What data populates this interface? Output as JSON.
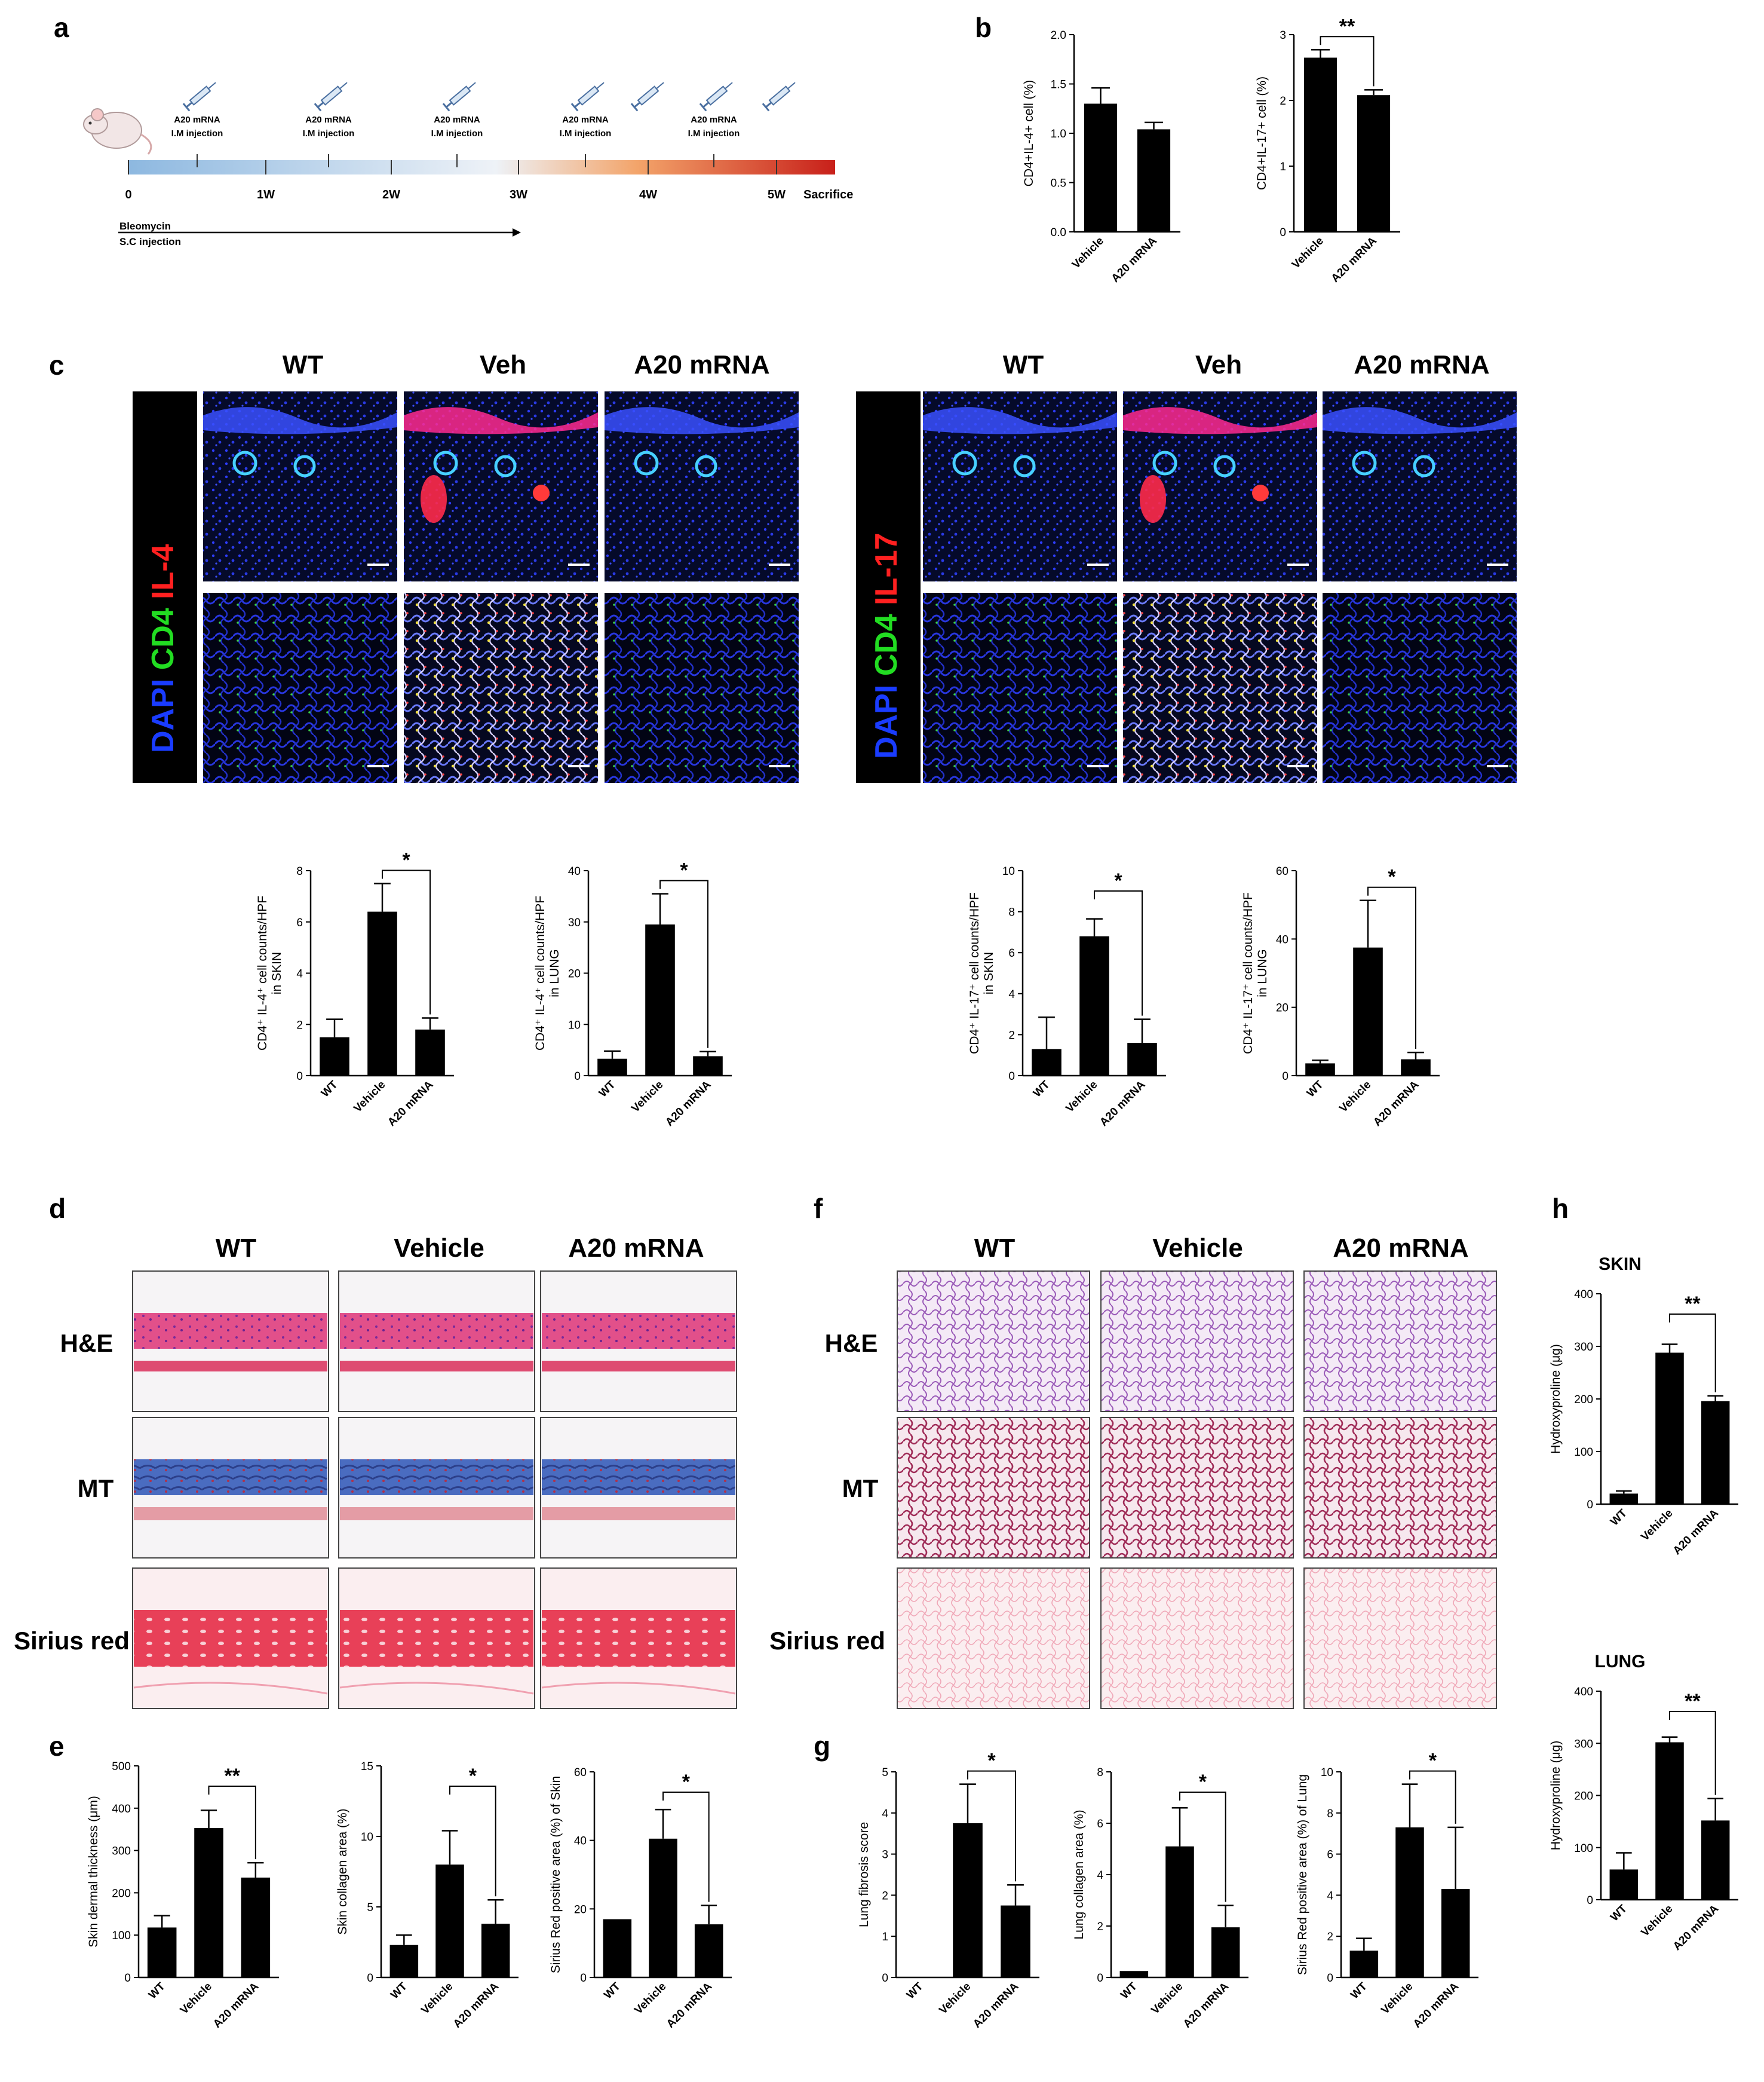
{
  "panels": {
    "a": "a",
    "b": "b",
    "c": "c",
    "d": "d",
    "e": "e",
    "f": "f",
    "g": "g",
    "h": "h"
  },
  "timeline": {
    "injection_label_1": "A20 mRNA",
    "injection_label_2": "I.M injection",
    "ticks": [
      "0",
      "1W",
      "2W",
      "3W",
      "4W",
      "5W"
    ],
    "end_label": "Sacrifice",
    "bleo_label_1": "Bleomycin",
    "bleo_label_2": "S.C injection",
    "colors": {
      "start": "#8db8e0",
      "mid": "#e8eef6",
      "end": "#c8201a"
    }
  },
  "panel_c": {
    "headers_left": [
      "WT",
      "Veh",
      "A20 mRNA"
    ],
    "headers_right": [
      "WT",
      "Veh",
      "A20 mRNA"
    ],
    "stain_left": {
      "dapi": "DAPI",
      "cd4": "CD4",
      "cyt": "IL-4"
    },
    "stain_right": {
      "dapi": "DAPI",
      "cd4": "CD4",
      "cyt": "IL-17"
    },
    "colors": {
      "dapi": "#1a3cff",
      "cd4": "#22dd22",
      "il": "#ff2020"
    }
  },
  "panel_d": {
    "headers": [
      "WT",
      "Vehicle",
      "A20 mRNA"
    ],
    "rows": [
      "H&E",
      "MT",
      "Sirius red"
    ]
  },
  "panel_f": {
    "headers": [
      "WT",
      "Vehicle",
      "A20 mRNA"
    ],
    "rows": [
      "H&E",
      "MT",
      "Sirius red"
    ]
  },
  "panel_h": {
    "skin_title": "SKIN",
    "lung_title": "LUNG"
  },
  "chart_data": [
    {
      "id": "b1",
      "type": "bar",
      "categories": [
        "Vehicle",
        "A20 mRNA"
      ],
      "values": [
        1.3,
        1.04
      ],
      "errors": [
        0.16,
        0.07
      ],
      "ylabel": "CD4+IL-4+ cell (%)",
      "ylim": [
        0,
        2.0
      ],
      "yticks": [
        "0.0",
        "0.5",
        "1.0",
        "1.5",
        "2.0"
      ],
      "sig": null
    },
    {
      "id": "b2",
      "type": "bar",
      "categories": [
        "Vehicle",
        "A20 mRNA"
      ],
      "values": [
        2.65,
        2.08
      ],
      "errors": [
        0.12,
        0.08
      ],
      "ylabel": "CD4+IL-17+ cell (%)",
      "ylim": [
        0,
        3
      ],
      "yticks": [
        "0",
        "1",
        "2",
        "3"
      ],
      "sig": {
        "from": 0,
        "to": 1,
        "label": "**"
      }
    },
    {
      "id": "c1",
      "type": "bar",
      "categories": [
        "WT",
        "Vehicle",
        "A20 mRNA"
      ],
      "values": [
        1.5,
        6.4,
        1.8
      ],
      "errors": [
        0.7,
        1.1,
        0.45
      ],
      "ylabel_1": "CD4⁺ IL-4⁺ cell counts/HPF",
      "ylabel_2": "in SKIN",
      "ylim": [
        0,
        8
      ],
      "yticks": [
        "0",
        "2",
        "4",
        "6",
        "8"
      ],
      "sig": {
        "from": 1,
        "to": 2,
        "label": "*"
      }
    },
    {
      "id": "c2",
      "type": "bar",
      "categories": [
        "WT",
        "Vehicle",
        "A20 mRNA"
      ],
      "values": [
        3.3,
        29.5,
        3.8
      ],
      "errors": [
        1.5,
        6.0,
        0.9
      ],
      "ylabel_1": "CD4⁺ IL-4⁺ cell counts/HPF",
      "ylabel_2": "in LUNG",
      "ylim": [
        0,
        40
      ],
      "yticks": [
        "0",
        "10",
        "20",
        "30",
        "40"
      ],
      "sig": {
        "from": 1,
        "to": 2,
        "label": "*"
      }
    },
    {
      "id": "c3",
      "type": "bar",
      "categories": [
        "WT",
        "Vehicle",
        "A20 mRNA"
      ],
      "values": [
        1.3,
        6.8,
        1.6
      ],
      "errors": [
        1.55,
        0.85,
        1.15
      ],
      "ylabel_1": "CD4⁺ IL-17⁺ cell counts/HPF",
      "ylabel_2": "in SKIN",
      "ylim": [
        0,
        10
      ],
      "yticks": [
        "0",
        "2",
        "4",
        "6",
        "8",
        "10"
      ],
      "sig": {
        "from": 1,
        "to": 2,
        "label": "*"
      }
    },
    {
      "id": "c4",
      "type": "bar",
      "categories": [
        "WT",
        "Vehicle",
        "A20 mRNA"
      ],
      "values": [
        3.6,
        37.5,
        4.8
      ],
      "errors": [
        0.9,
        13.8,
        2.0
      ],
      "ylabel_1": "CD4⁺ IL-17⁺ cell counts/HPF",
      "ylabel_2": "in LUNG",
      "ylim": [
        0,
        60
      ],
      "yticks": [
        "0",
        "20",
        "40",
        "60"
      ],
      "sig": {
        "from": 1,
        "to": 2,
        "label": "*"
      }
    },
    {
      "id": "e1",
      "type": "bar",
      "categories": [
        "WT",
        "Vehicle",
        "A20 mRNA"
      ],
      "values": [
        118,
        353,
        236
      ],
      "errors": [
        28,
        42,
        35
      ],
      "ylabel": "Skin dermal thickness (μm)",
      "ylim": [
        0,
        500
      ],
      "yticks": [
        "0",
        "100",
        "200",
        "300",
        "400",
        "500"
      ],
      "sig": {
        "from": 1,
        "to": 2,
        "label": "**"
      }
    },
    {
      "id": "e2",
      "type": "bar",
      "categories": [
        "WT",
        "Vehicle",
        "A20 mRNA"
      ],
      "values": [
        2.3,
        8.0,
        3.8
      ],
      "errors": [
        0.7,
        2.4,
        1.7
      ],
      "ylabel": "Skin collagen area (%)",
      "ylim": [
        0,
        15
      ],
      "yticks": [
        "0",
        "5",
        "10",
        "15"
      ],
      "sig": {
        "from": 1,
        "to": 2,
        "label": "*"
      }
    },
    {
      "id": "e3",
      "type": "bar",
      "categories": [
        "WT",
        "Vehicle",
        "A20 mRNA"
      ],
      "values": [
        17,
        40.5,
        15.5
      ],
      "errors": [
        0,
        8.5,
        5.5
      ],
      "ylabel": "Sirius Red positive area (%) of Skin",
      "ylim": [
        0,
        60
      ],
      "yticks": [
        "0",
        "20",
        "40",
        "60"
      ],
      "sig": {
        "from": 1,
        "to": 2,
        "label": "*"
      }
    },
    {
      "id": "g1",
      "type": "bar",
      "categories": [
        "WT",
        "Vehicle",
        "A20 mRNA"
      ],
      "values": [
        0,
        3.75,
        1.75
      ],
      "errors": [
        0,
        0.95,
        0.5
      ],
      "ylabel": "Lung fibrosis score",
      "ylim": [
        0,
        5
      ],
      "yticks": [
        "0",
        "1",
        "2",
        "3",
        "4",
        "5"
      ],
      "sig": {
        "from": 1,
        "to": 2,
        "label": "*"
      }
    },
    {
      "id": "g2",
      "type": "bar",
      "categories": [
        "WT",
        "Vehicle",
        "A20 mRNA"
      ],
      "values": [
        0.25,
        5.1,
        1.95
      ],
      "errors": [
        0,
        1.5,
        0.85
      ],
      "ylabel": "Lung collagen area (%)",
      "ylim": [
        0,
        8
      ],
      "yticks": [
        "0",
        "2",
        "4",
        "6",
        "8"
      ],
      "sig": {
        "from": 1,
        "to": 2,
        "label": "*"
      }
    },
    {
      "id": "g3",
      "type": "bar",
      "categories": [
        "WT",
        "Vehicle",
        "A20 mRNA"
      ],
      "values": [
        1.3,
        7.3,
        4.3
      ],
      "errors": [
        0.6,
        2.1,
        3.0
      ],
      "ylabel": "Sirius Red positive area (%) of Lung",
      "ylim": [
        0,
        10
      ],
      "yticks": [
        "0",
        "2",
        "4",
        "6",
        "8",
        "10"
      ],
      "sig": {
        "from": 1,
        "to": 2,
        "label": "*"
      }
    },
    {
      "id": "h1",
      "type": "bar",
      "categories": [
        "WT",
        "Vehicle",
        "A20 mRNA"
      ],
      "values": [
        20,
        288,
        196
      ],
      "errors": [
        5,
        16,
        10
      ],
      "ylabel": "Hydroxyproline (μg)",
      "ylim": [
        0,
        400
      ],
      "yticks": [
        "0",
        "100",
        "200",
        "300",
        "400"
      ],
      "sig": {
        "from": 1,
        "to": 2,
        "label": "**"
      }
    },
    {
      "id": "h2",
      "type": "bar",
      "categories": [
        "WT",
        "Vehicle",
        "A20 mRNA"
      ],
      "values": [
        58,
        302,
        152
      ],
      "errors": [
        32,
        10,
        42
      ],
      "ylabel": "Hydroxyproline (μg)",
      "ylim": [
        0,
        400
      ],
      "yticks": [
        "0",
        "100",
        "200",
        "300",
        "400"
      ],
      "sig": {
        "from": 1,
        "to": 2,
        "label": "**"
      }
    }
  ]
}
